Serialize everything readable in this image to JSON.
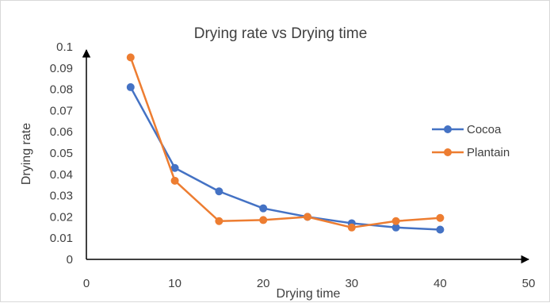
{
  "chart_data": {
    "type": "line",
    "title": "Drying rate vs Drying time",
    "xlabel": "Drying time",
    "ylabel": "Drying rate",
    "xlim": [
      0,
      50
    ],
    "ylim": [
      0,
      0.1
    ],
    "x_ticks": [
      "0",
      "10",
      "20",
      "30",
      "40",
      "50"
    ],
    "y_ticks": [
      "0",
      "0.01",
      "0.02",
      "0.03",
      "0.04",
      "0.05",
      "0.06",
      "0.07",
      "0.08",
      "0.09",
      "0.1"
    ],
    "grid": false,
    "legend_position": "right",
    "series": [
      {
        "name": "Cocoa",
        "color": "#4472c4",
        "x": [
          5,
          10,
          15,
          20,
          25,
          30,
          35,
          40
        ],
        "values": [
          0.081,
          0.043,
          0.032,
          0.024,
          0.02,
          0.017,
          0.015,
          0.014
        ]
      },
      {
        "name": "Plantain",
        "color": "#ed7d31",
        "x": [
          5,
          10,
          15,
          20,
          25,
          30,
          35,
          40
        ],
        "values": [
          0.095,
          0.037,
          0.018,
          0.0185,
          0.02,
          0.015,
          0.018,
          0.0195
        ]
      }
    ]
  }
}
